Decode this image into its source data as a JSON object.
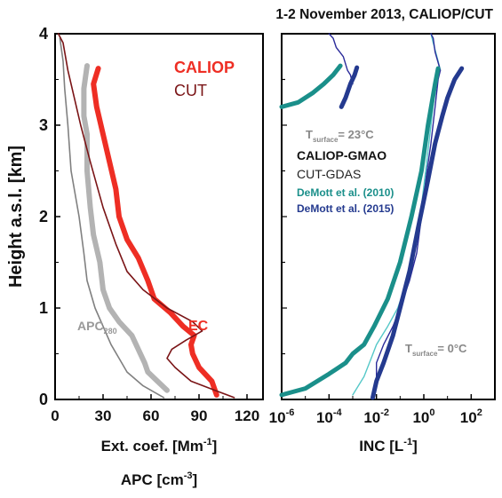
{
  "chart_data": [
    {
      "type": "line",
      "panel": "left",
      "ylabel": "Height a.s.l. [km]",
      "xlabel_line1_text": "Ext. coef. [Mm",
      "xlabel_line1_sup": "-1",
      "xlabel_line1_close": "]",
      "xlabel_line2_text": "APC [cm",
      "xlabel_line2_sup": "-3",
      "xlabel_line2_close": "]",
      "xlim": [
        0,
        130
      ],
      "ylim": [
        0,
        4
      ],
      "xticks": [
        "0",
        "30",
        "60",
        "90",
        "120"
      ],
      "yticks": [
        "0",
        "1",
        "2",
        "3",
        "4"
      ],
      "grid": false,
      "legend": [
        {
          "label": "CALIOP",
          "color": "#ee2e24"
        },
        {
          "label": "CUT",
          "color": "#7a1416"
        }
      ],
      "annotations": [
        {
          "text": "EC",
          "color": "#ee2e24"
        },
        {
          "text": "APC",
          "sub": "280",
          "color": "#999999"
        }
      ],
      "series": [
        {
          "name": "CALIOP",
          "group": "EC",
          "color": "#ee2e24",
          "points": [
            [
              101,
              0.05
            ],
            [
              98,
              0.2
            ],
            [
              90,
              0.35
            ],
            [
              86,
              0.5
            ],
            [
              85,
              0.6
            ],
            [
              87,
              0.7
            ],
            [
              80,
              0.8
            ],
            [
              72,
              0.95
            ],
            [
              62,
              1.1
            ],
            [
              58,
              1.3
            ],
            [
              52,
              1.55
            ],
            [
              45,
              1.75
            ],
            [
              40,
              2.0
            ],
            [
              38,
              2.3
            ],
            [
              34,
              2.6
            ],
            [
              30,
              2.9
            ],
            [
              26,
              3.2
            ],
            [
              24,
              3.45
            ],
            [
              27,
              3.62
            ]
          ]
        },
        {
          "name": "CUT",
          "group": "EC",
          "color": "#7a1416",
          "points": [
            [
              112,
              0.02
            ],
            [
              100,
              0.1
            ],
            [
              85,
              0.2
            ],
            [
              75,
              0.35
            ],
            [
              70,
              0.45
            ],
            [
              73,
              0.55
            ],
            [
              82,
              0.65
            ],
            [
              92,
              0.75
            ],
            [
              86,
              0.85
            ],
            [
              70,
              1.0
            ],
            [
              55,
              1.2
            ],
            [
              45,
              1.4
            ],
            [
              38,
              1.7
            ],
            [
              30,
              2.1
            ],
            [
              22,
              2.6
            ],
            [
              16,
              3.0
            ],
            [
              12,
              3.3
            ],
            [
              8,
              3.6
            ],
            [
              5,
              3.9
            ],
            [
              2,
              4.0
            ]
          ]
        },
        {
          "name": "CALIOP",
          "group": "APC",
          "color": "#b3b3b3",
          "points": [
            [
              70,
              0.1
            ],
            [
              64,
              0.2
            ],
            [
              58,
              0.3
            ],
            [
              56,
              0.4
            ],
            [
              52,
              0.55
            ],
            [
              48,
              0.7
            ],
            [
              40,
              0.85
            ],
            [
              34,
              1.0
            ],
            [
              30,
              1.2
            ],
            [
              28,
              1.5
            ],
            [
              24,
              1.8
            ],
            [
              22,
              2.1
            ],
            [
              20,
              2.5
            ],
            [
              20,
              2.9
            ],
            [
              18,
              3.1
            ],
            [
              18,
              3.4
            ],
            [
              20,
              3.65
            ]
          ]
        },
        {
          "name": "CUT",
          "group": "APC",
          "color": "#808080",
          "points": [
            [
              68,
              0.02
            ],
            [
              55,
              0.15
            ],
            [
              45,
              0.3
            ],
            [
              40,
              0.45
            ],
            [
              35,
              0.6
            ],
            [
              30,
              0.8
            ],
            [
              25,
              1.0
            ],
            [
              20,
              1.3
            ],
            [
              18,
              1.6
            ],
            [
              15,
              2.0
            ],
            [
              10,
              2.5
            ],
            [
              8,
              3.0
            ],
            [
              6,
              3.4
            ],
            [
              5,
              3.7
            ],
            [
              3,
              3.95
            ]
          ]
        }
      ]
    },
    {
      "type": "line",
      "panel": "right",
      "title": "1-2 November 2013, CALIOP/CUT",
      "xlabel_text": "INC [L",
      "xlabel_sup": "-1",
      "xlabel_close": "]",
      "xscale": "log",
      "xlim_exponent": [
        -6,
        3
      ],
      "ylim": [
        0,
        4
      ],
      "xticks": [
        {
          "base": "10",
          "exp": "-6"
        },
        {
          "base": "10",
          "exp": "-4"
        },
        {
          "base": "10",
          "exp": "-2"
        },
        {
          "base": "10",
          "exp": "0"
        },
        {
          "base": "10",
          "exp": "2"
        }
      ],
      "grid": false,
      "legend": [
        {
          "label": "CALIOP-GMAO",
          "color": "#111111",
          "bold": true
        },
        {
          "label": "CUT-GDAS",
          "color": "#222222",
          "bold": false
        },
        {
          "label": "DeMott et al. (2010)",
          "color": "#1a8f8a",
          "bold": true
        },
        {
          "label": "DeMott et al. (2015)",
          "color": "#243a8f",
          "bold": true
        }
      ],
      "annotations": [
        {
          "text": "T",
          "sub": "surface",
          "tail": "= 23°C",
          "color": "#888888"
        },
        {
          "text": "T",
          "sub": "surface",
          "tail": "= 0°C",
          "color": "#888888"
        }
      ],
      "series": [
        {
          "name": "CALIOP-GMAO",
          "group": "Tsurface = 23°C",
          "color": "#2b2b9a",
          "points": [
            [
              0.001,
              3.45
            ],
            [
              0.0008,
              3.55
            ],
            [
              0.0006,
              3.6
            ],
            [
              0.0004,
              3.75
            ],
            [
              0.0002,
              3.85
            ],
            [
              0.00015,
              3.95
            ],
            [
              0.0001,
              4.0
            ]
          ]
        },
        {
          "name": "CUT-GDAS",
          "group": "Tsurface = 23°C",
          "color": "#55c8c8",
          "points": [
            [
              5,
              3.6
            ],
            [
              4,
              3.7
            ],
            [
              2.5,
              3.9
            ],
            [
              2.0,
              4.0
            ]
          ]
        },
        {
          "name": "DeMott et al. (2010)",
          "group": "Tsurface = 23°C",
          "color": "#1a8f8a",
          "points": [
            [
              1e-06,
              3.2
            ],
            [
              5e-06,
              3.25
            ],
            [
              2e-05,
              3.35
            ],
            [
              6e-05,
              3.45
            ],
            [
              0.00015,
              3.55
            ],
            [
              0.0003,
              3.65
            ]
          ]
        },
        {
          "name": "DeMott et al. (2015)",
          "group": "Tsurface = 23°C",
          "color": "#243a8f",
          "points": [
            [
              0.00033,
              3.2
            ],
            [
              0.0005,
              3.3
            ],
            [
              0.0008,
              3.45
            ],
            [
              0.0012,
              3.55
            ],
            [
              0.0015,
              3.63
            ]
          ]
        },
        {
          "name": "CALIOP-GMAO",
          "group": "Tsurface = 0°C",
          "color": "#2b2b9a",
          "points": [
            [
              0.008,
              0.05
            ],
            [
              0.01,
              0.2
            ],
            [
              0.01,
              0.4
            ],
            [
              0.02,
              0.6
            ],
            [
              0.05,
              0.8
            ],
            [
              0.1,
              1.0
            ],
            [
              0.25,
              1.3
            ],
            [
              0.5,
              1.6
            ],
            [
              0.8,
              2.0
            ],
            [
              1.2,
              2.4
            ],
            [
              2,
              2.8
            ],
            [
              3,
              3.2
            ],
            [
              4,
              3.5
            ],
            [
              5,
              3.6
            ],
            [
              3,
              3.8
            ],
            [
              2.5,
              3.95
            ],
            [
              2,
              4.0
            ]
          ]
        },
        {
          "name": "CUT-GDAS",
          "group": "Tsurface = 0°C",
          "color": "#55c8c8",
          "points": [
            [
              0.001,
              0.05
            ],
            [
              0.003,
              0.25
            ],
            [
              0.006,
              0.45
            ],
            [
              0.01,
              0.6
            ],
            [
              0.03,
              0.8
            ],
            [
              0.08,
              1.0
            ],
            [
              0.2,
              1.3
            ],
            [
              0.4,
              1.6
            ],
            [
              0.7,
              2.0
            ],
            [
              1.2,
              2.5
            ],
            [
              2,
              3.0
            ],
            [
              3,
              3.4
            ],
            [
              3.8,
              3.6
            ]
          ]
        },
        {
          "name": "DeMott et al. (2010)",
          "group": "Tsurface = 0°C",
          "color": "#1a8f8a",
          "points": [
            [
              1e-06,
              0.05
            ],
            [
              1e-05,
              0.12
            ],
            [
              0.0001,
              0.28
            ],
            [
              0.0005,
              0.4
            ],
            [
              0.001,
              0.5
            ],
            [
              0.003,
              0.6
            ],
            [
              0.008,
              0.8
            ],
            [
              0.03,
              1.1
            ],
            [
              0.1,
              1.5
            ],
            [
              0.3,
              2.0
            ],
            [
              0.8,
              2.5
            ],
            [
              1.5,
              3.0
            ],
            [
              3,
              3.45
            ],
            [
              4,
              3.62
            ]
          ]
        },
        {
          "name": "DeMott et al. (2015)",
          "group": "Tsurface = 0°C",
          "color": "#243a8f",
          "points": [
            [
              0.007,
              0.02
            ],
            [
              0.01,
              0.2
            ],
            [
              0.02,
              0.4
            ],
            [
              0.05,
              0.7
            ],
            [
              0.1,
              1.0
            ],
            [
              0.25,
              1.4
            ],
            [
              0.6,
              1.9
            ],
            [
              1.5,
              2.4
            ],
            [
              3,
              2.8
            ],
            [
              6,
              3.1
            ],
            [
              10,
              3.3
            ],
            [
              20,
              3.5
            ],
            [
              40,
              3.62
            ]
          ]
        }
      ]
    }
  ]
}
